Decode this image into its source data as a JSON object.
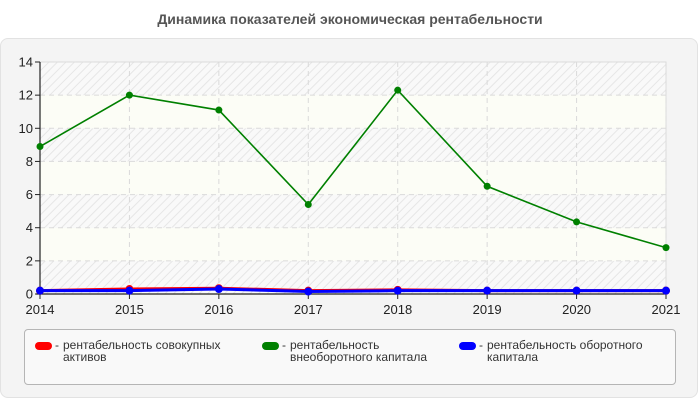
{
  "chart_data": {
    "type": "line",
    "title": "Динамика показателей экономическая рентабельности",
    "xlabel": "",
    "ylabel": "",
    "categories": [
      "2014",
      "2015",
      "2016",
      "2017",
      "2018",
      "2019",
      "2020",
      "2021"
    ],
    "ylim": [
      0,
      14
    ],
    "yticks": [
      0,
      2,
      4,
      6,
      8,
      10,
      12,
      14
    ],
    "grid": true,
    "legend_position": "bottom",
    "series": [
      {
        "name": "рентабельность совокупных активов",
        "color": "#ff0000",
        "values": [
          0.2,
          0.3,
          0.35,
          0.2,
          0.25,
          0.2,
          0.2,
          0.2
        ]
      },
      {
        "name": "рентабельность внеоборотного капитала",
        "color": "#008000",
        "values": [
          8.9,
          12.0,
          11.1,
          5.4,
          12.3,
          6.5,
          4.35,
          2.8
        ]
      },
      {
        "name": "рентабельность оборотного капитала",
        "color": "#0000ff",
        "values": [
          0.2,
          0.2,
          0.3,
          0.15,
          0.2,
          0.2,
          0.2,
          0.2
        ]
      }
    ]
  },
  "legend": {
    "items": [
      {
        "label": "рентабельность совокупных активов",
        "color": "#ff0000"
      },
      {
        "label": "рентабельность внеоборотного капитала",
        "color": "#008000"
      },
      {
        "label": "рентабельность оборотного капитала",
        "color": "#0000ff"
      }
    ],
    "separator": "-"
  }
}
